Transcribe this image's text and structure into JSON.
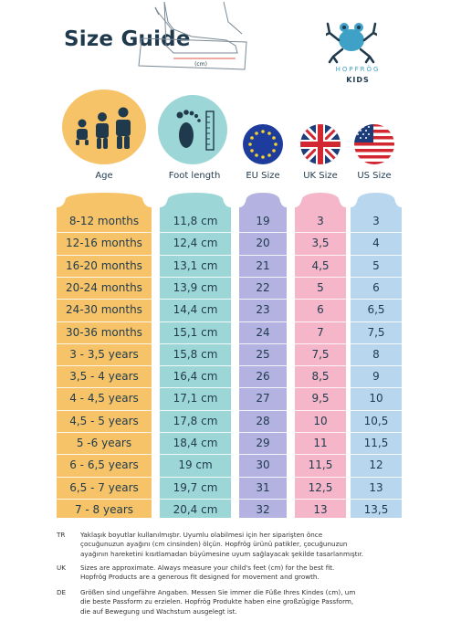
{
  "title": "Size Guide",
  "brand": {
    "name": "HOPFRÖG",
    "sub": "KIDS"
  },
  "sketch_label": "(cm)",
  "headers": {
    "age": "Age",
    "foot": "Foot length",
    "eu": "EU Size",
    "uk": "UK Size",
    "us": "US Size"
  },
  "colors": {
    "age": "#f7c368",
    "foot": "#9dd6d6",
    "eu": "#b3b2e0",
    "uk": "#f4b6c8",
    "us": "#b9d6ef",
    "text": "#1f3a4d"
  },
  "rows": [
    {
      "age": "8-12 months",
      "foot": "11,8 cm",
      "eu": "19",
      "uk": "3",
      "us": "3"
    },
    {
      "age": "12-16 months",
      "foot": "12,4 cm",
      "eu": "20",
      "uk": "3,5",
      "us": "4"
    },
    {
      "age": "16-20 months",
      "foot": "13,1 cm",
      "eu": "21",
      "uk": "4,5",
      "us": "5"
    },
    {
      "age": "20-24 months",
      "foot": "13,9 cm",
      "eu": "22",
      "uk": "5",
      "us": "6"
    },
    {
      "age": "24-30 months",
      "foot": "14,4 cm",
      "eu": "23",
      "uk": "6",
      "us": "6,5"
    },
    {
      "age": "30-36 months",
      "foot": "15,1 cm",
      "eu": "24",
      "uk": "7",
      "us": "7,5"
    },
    {
      "age": "3 - 3,5 years",
      "foot": "15,8 cm",
      "eu": "25",
      "uk": "7,5",
      "us": "8"
    },
    {
      "age": "3,5 - 4 years",
      "foot": "16,4 cm",
      "eu": "26",
      "uk": "8,5",
      "us": "9"
    },
    {
      "age": "4 - 4,5 years",
      "foot": "17,1 cm",
      "eu": "27",
      "uk": "9,5",
      "us": "10"
    },
    {
      "age": "4,5 - 5 years",
      "foot": "17,8 cm",
      "eu": "28",
      "uk": "10",
      "us": "10,5"
    },
    {
      "age": "5 -6 years",
      "foot": "18,4 cm",
      "eu": "29",
      "uk": "11",
      "us": "11,5"
    },
    {
      "age": "6 - 6,5 years",
      "foot": "19 cm",
      "eu": "30",
      "uk": "11,5",
      "us": "12"
    },
    {
      "age": "6,5 - 7 years",
      "foot": "19,7 cm",
      "eu": "31",
      "uk": "12,5",
      "us": "13"
    },
    {
      "age": "7 - 8 years",
      "foot": "20,4 cm",
      "eu": "32",
      "uk": "13",
      "us": "13,5"
    }
  ],
  "notes": [
    {
      "lang": "TR",
      "lines": [
        "Yaklaşık boyutlar kullanılmıştır. Uyumlu olabilmesi için her siparişten önce",
        "çocuğunuzun ayağını (cm cinsinden) ölçün. Hopfrög ürünü patikler, çocuğunuzun",
        "ayağının hareketini kısıtlamadan büyümesine uyum sağlayacak şekilde tasarlanmıştır."
      ]
    },
    {
      "lang": "UK",
      "lines": [
        "Sizes are approximate. Always measure your child's feet (cm) for the best fit.",
        "Hopfrög Products are a generous fit designed for movement and growth."
      ]
    },
    {
      "lang": "DE",
      "lines": [
        "Größen sind ungefähre Angaben. Messen Sie immer die Füße Ihres Kindes (cm), um",
        "die beste Passform zu erzielen. Hopfrög Produkte haben eine großzügige Passform,",
        "die auf Bewegung und Wachstum ausgelegt ist."
      ]
    }
  ]
}
